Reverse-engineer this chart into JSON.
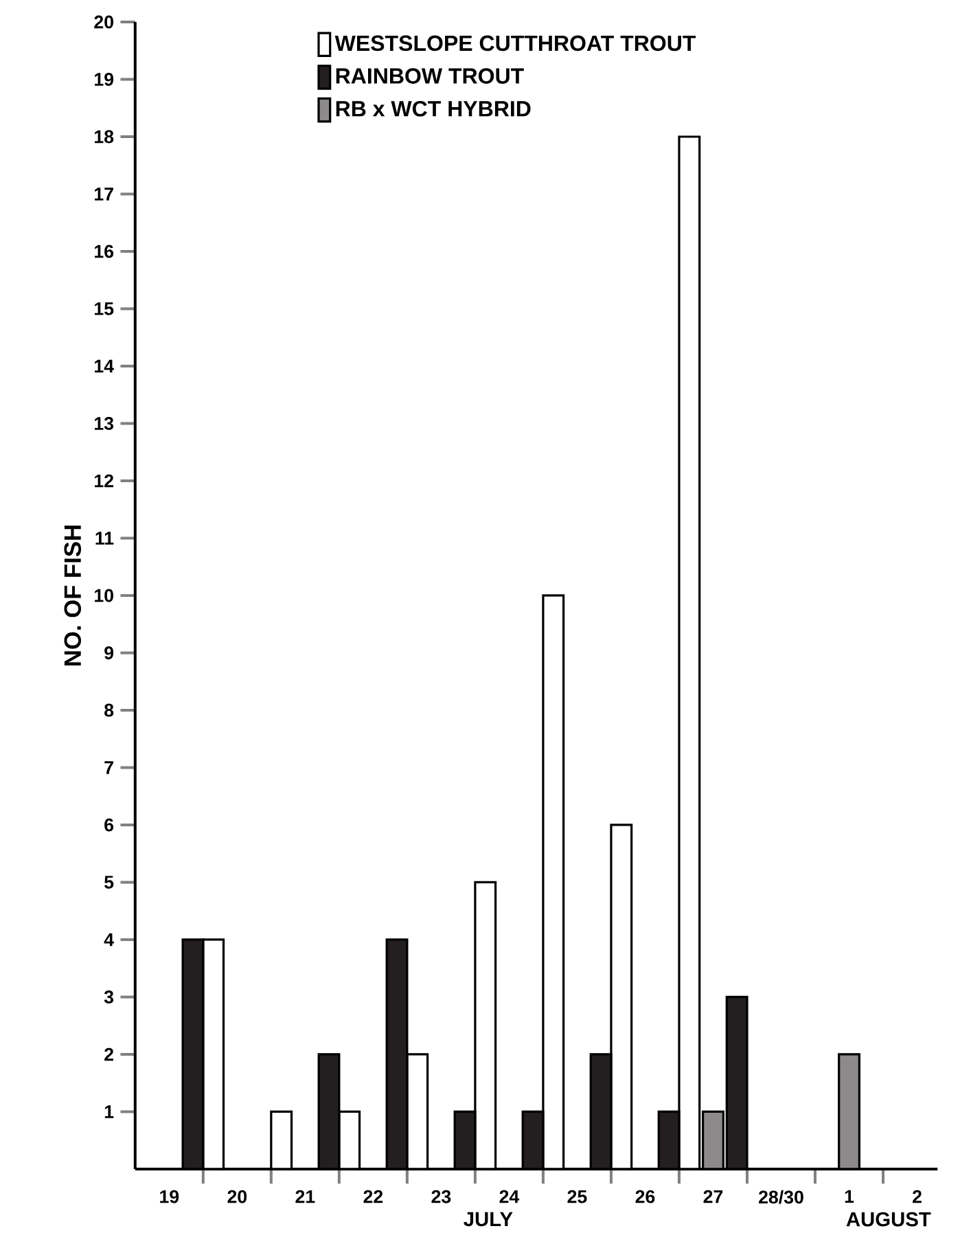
{
  "chart_data": {
    "type": "bar",
    "xlabel": "JULY",
    "ylabel": "NO. OF FISH",
    "annotations": [
      "AUGUST"
    ],
    "categories": [
      "19",
      "20",
      "21",
      "22",
      "23",
      "24",
      "25",
      "26",
      "27",
      "28/30",
      "1",
      "2"
    ],
    "series": [
      {
        "name": "WESTSLOPE CUTTHROAT TROUT",
        "color": "#ffffff",
        "values": [
          null,
          4,
          1,
          1,
          2,
          5,
          10,
          6,
          18,
          null,
          null,
          null
        ]
      },
      {
        "name": "RAINBOW TROUT",
        "color": "#231f20",
        "values": [
          4,
          null,
          2,
          4,
          1,
          1,
          2,
          1,
          3,
          null,
          null,
          null
        ]
      },
      {
        "name": "RB x WCT HYBRID",
        "color": "#8c8a8b",
        "values": [
          null,
          null,
          null,
          null,
          null,
          null,
          null,
          null,
          1,
          null,
          2,
          null
        ]
      }
    ],
    "ylim": [
      0,
      20
    ],
    "yticks": [
      1,
      2,
      3,
      4,
      5,
      6,
      7,
      8,
      9,
      10,
      11,
      12,
      13,
      14,
      15,
      16,
      17,
      18,
      19,
      20
    ],
    "grid": false,
    "legend": "top"
  }
}
